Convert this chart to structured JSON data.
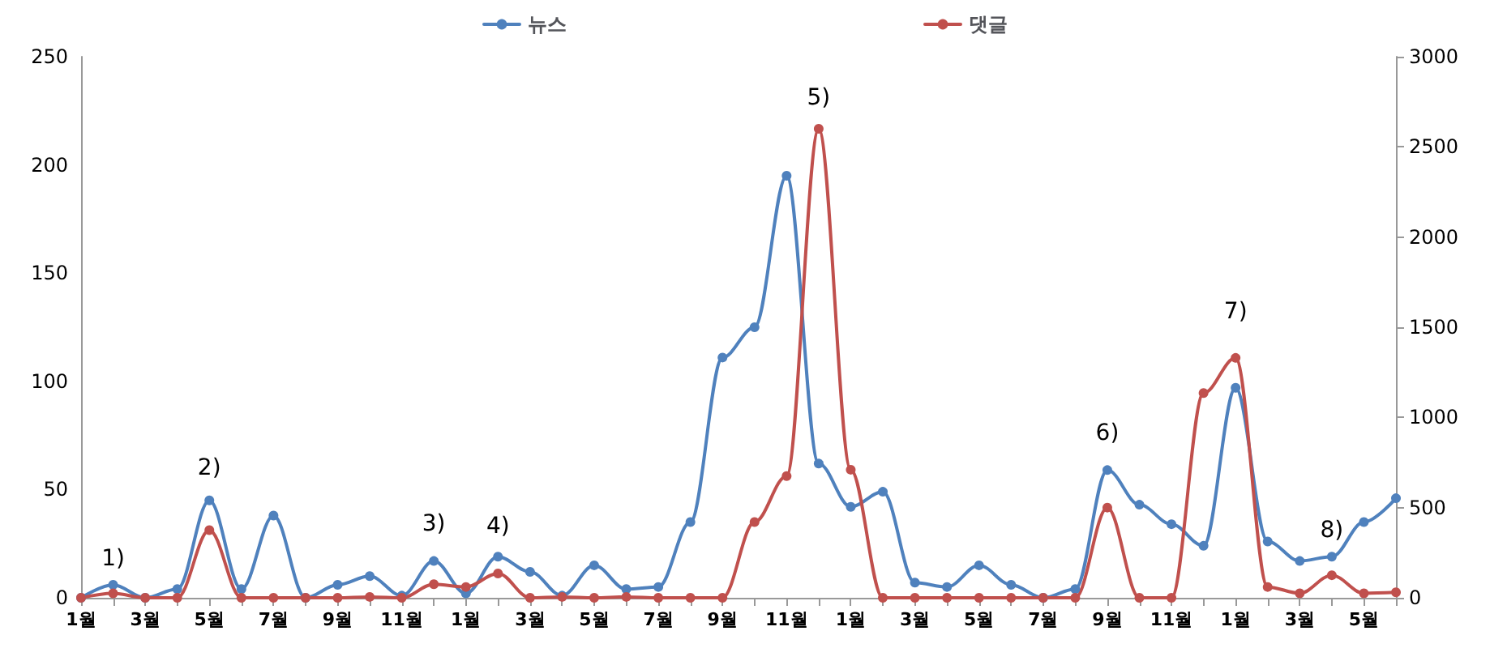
{
  "chart_data": {
    "type": "line",
    "categories": [
      "1월",
      null,
      "3월",
      null,
      "5월",
      null,
      "7월",
      null,
      "9월",
      null,
      "11월",
      null,
      "1월",
      null,
      "3월",
      null,
      "5월",
      null,
      "7월",
      null,
      "9월",
      null,
      "11월",
      null,
      "1월",
      null,
      "3월",
      null,
      "5월",
      null,
      "7월",
      null,
      "9월",
      null,
      "11월",
      null,
      "1월",
      null,
      "3월",
      null,
      "5월",
      null
    ],
    "series": [
      {
        "name": "뉴스",
        "color": "#4f81bd",
        "values": [
          0,
          6,
          0,
          4,
          45,
          4,
          38,
          0,
          6,
          10,
          1,
          17,
          2,
          19,
          12,
          1,
          15,
          4,
          5,
          35,
          111,
          125,
          195,
          62,
          42,
          49,
          7,
          5,
          15,
          6,
          0,
          4,
          59,
          43,
          34,
          24,
          97,
          26,
          17,
          19,
          35,
          46
        ]
      },
      {
        "name": "댓글",
        "color": "#c0504d",
        "axis": "y2",
        "values": [
          0,
          25,
          0,
          0,
          375,
          0,
          0,
          0,
          0,
          5,
          0,
          75,
          60,
          135,
          0,
          5,
          0,
          5,
          0,
          0,
          0,
          420,
          675,
          2600,
          710,
          0,
          0,
          0,
          0,
          0,
          0,
          0,
          500,
          0,
          0,
          1135,
          1330,
          60,
          25,
          125,
          25,
          30
        ]
      }
    ],
    "ylim": [
      0,
      250
    ],
    "yticks": [
      0,
      50,
      100,
      150,
      200,
      250
    ],
    "y2lim": [
      0,
      3000
    ],
    "y2ticks": [
      0,
      500,
      1000,
      1500,
      2000,
      2500,
      3000
    ],
    "annotations": [
      "1)",
      "2)",
      "3)",
      "4)",
      "5)",
      "6)",
      "7)",
      "8)"
    ],
    "legend": "top",
    "grid": false,
    "marker": "circle",
    "line_style": "solid"
  }
}
